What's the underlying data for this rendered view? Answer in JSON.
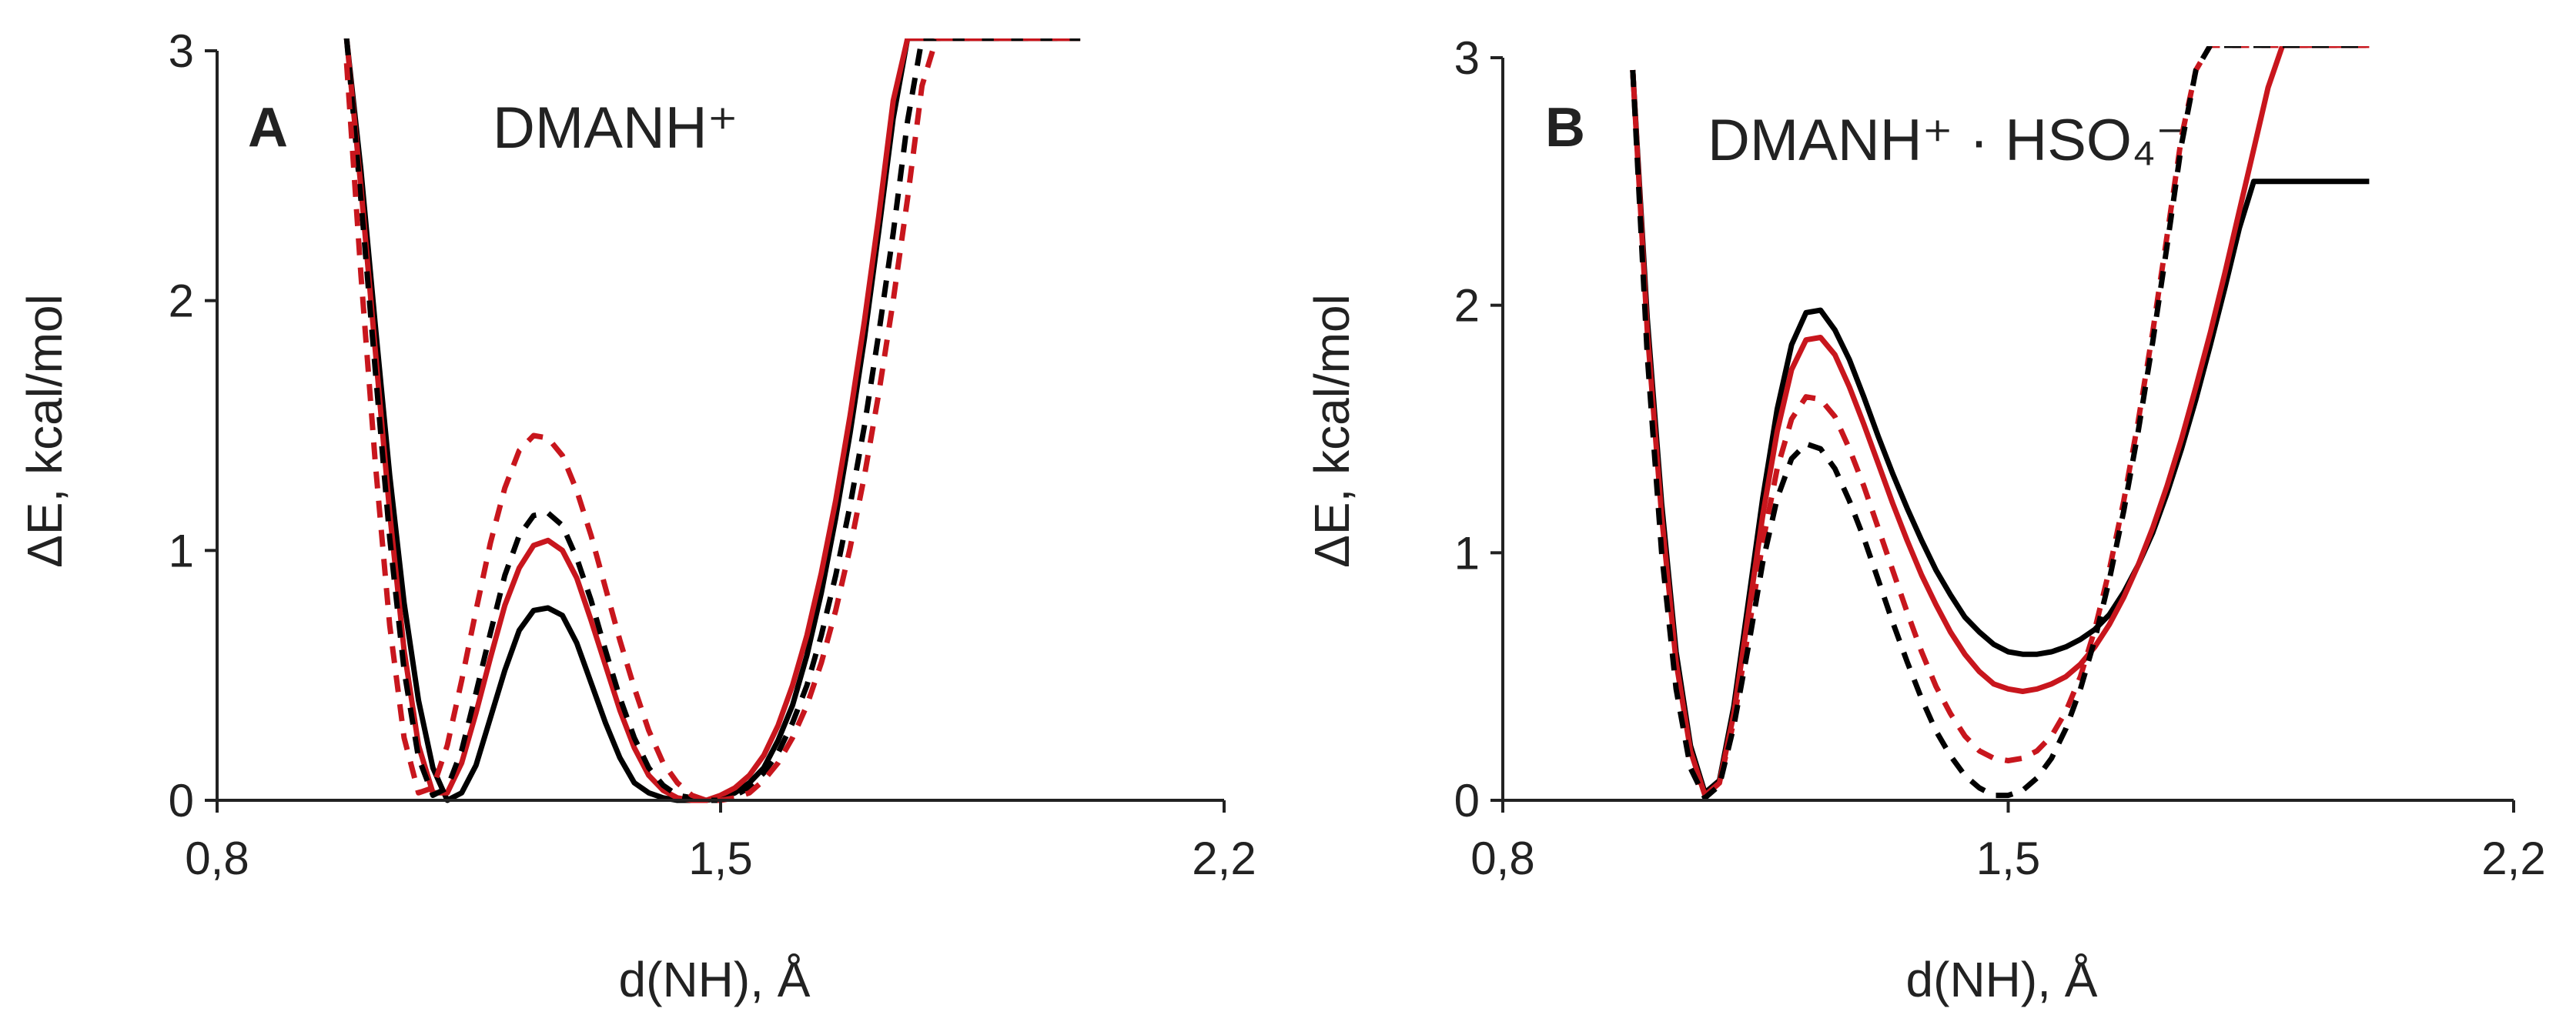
{
  "chart_data": [
    {
      "type": "line",
      "panel_letter": "A",
      "title": "DMANH⁺",
      "xlabel": "d(NH), Å",
      "ylabel": "ΔE, kcal/mol",
      "xlim": [
        0.8,
        2.2
      ],
      "ylim": [
        0,
        3
      ],
      "x_ticks": [
        "0,8",
        "1,5",
        "2,2"
      ],
      "y_ticks": [
        "0",
        "1",
        "2",
        "3"
      ],
      "grid": false,
      "series": [
        {
          "name": "black solid",
          "color": "#000000",
          "dash": "solid",
          "x": [
            0.98,
            1.0,
            1.02,
            1.04,
            1.06,
            1.08,
            1.1,
            1.12,
            1.14,
            1.16,
            1.18,
            1.2,
            1.22,
            1.24,
            1.26,
            1.28,
            1.3,
            1.32,
            1.34,
            1.36,
            1.38,
            1.4,
            1.42,
            1.44,
            1.46,
            1.48,
            1.5,
            1.52,
            1.54,
            1.56,
            1.58,
            1.6,
            1.62,
            1.64,
            1.66,
            1.68,
            1.7,
            1.72,
            1.74,
            1.76,
            1.78,
            1.8,
            1.82,
            1.84,
            1.86,
            1.88,
            1.9,
            1.92,
            1.94,
            1.96,
            1.98,
            2.0
          ],
          "y": [
            3.05,
            2.52,
            1.9,
            1.3,
            0.79,
            0.4,
            0.13,
            0.0,
            0.03,
            0.14,
            0.33,
            0.52,
            0.68,
            0.76,
            0.77,
            0.74,
            0.63,
            0.47,
            0.31,
            0.17,
            0.07,
            0.03,
            0.01,
            0.0,
            0.0,
            0.0,
            0.01,
            0.03,
            0.07,
            0.13,
            0.24,
            0.38,
            0.58,
            0.83,
            1.13,
            1.47,
            1.85,
            2.28,
            2.73,
            3.05,
            3.05,
            3.05,
            3.05,
            3.05,
            3.05,
            3.05,
            3.05,
            3.05,
            3.05,
            3.05,
            3.05,
            3.05
          ]
        },
        {
          "name": "red solid",
          "color": "#c8161d",
          "dash": "solid",
          "x": [
            0.98,
            1.0,
            1.02,
            1.04,
            1.06,
            1.08,
            1.1,
            1.12,
            1.14,
            1.16,
            1.18,
            1.2,
            1.22,
            1.24,
            1.26,
            1.28,
            1.3,
            1.32,
            1.34,
            1.36,
            1.38,
            1.4,
            1.42,
            1.44,
            1.46,
            1.48,
            1.5,
            1.52,
            1.54,
            1.56,
            1.58,
            1.6,
            1.62,
            1.64,
            1.66,
            1.68,
            1.7,
            1.72,
            1.74,
            1.76,
            1.78,
            1.8,
            1.82,
            1.84,
            1.86,
            1.88,
            1.9,
            1.92,
            1.94,
            1.96,
            1.98,
            2.0
          ],
          "y": [
            3.05,
            2.45,
            1.8,
            1.15,
            0.6,
            0.22,
            0.03,
            0.03,
            0.15,
            0.35,
            0.57,
            0.78,
            0.93,
            1.02,
            1.04,
            1.0,
            0.89,
            0.72,
            0.54,
            0.36,
            0.21,
            0.1,
            0.04,
            0.01,
            0.0,
            0.0,
            0.02,
            0.05,
            0.1,
            0.18,
            0.3,
            0.46,
            0.66,
            0.91,
            1.2,
            1.54,
            1.92,
            2.34,
            2.8,
            3.05,
            3.05,
            3.05,
            3.05,
            3.05,
            3.05,
            3.05,
            3.05,
            3.05,
            3.05,
            3.05,
            3.05,
            3.05
          ]
        },
        {
          "name": "black dashed",
          "color": "#000000",
          "dash": "dashed",
          "x": [
            0.98,
            1.0,
            1.02,
            1.04,
            1.06,
            1.08,
            1.1,
            1.12,
            1.14,
            1.16,
            1.18,
            1.2,
            1.22,
            1.24,
            1.26,
            1.28,
            1.3,
            1.32,
            1.34,
            1.36,
            1.38,
            1.4,
            1.42,
            1.44,
            1.46,
            1.48,
            1.5,
            1.52,
            1.54,
            1.56,
            1.58,
            1.6,
            1.62,
            1.64,
            1.66,
            1.68,
            1.7,
            1.72,
            1.74,
            1.76,
            1.78,
            1.8,
            1.82,
            1.84,
            1.86,
            1.88,
            1.9,
            1.92,
            1.94,
            1.96,
            1.98,
            2.0
          ],
          "y": [
            3.05,
            2.4,
            1.72,
            1.05,
            0.52,
            0.17,
            0.02,
            0.05,
            0.2,
            0.43,
            0.67,
            0.9,
            1.06,
            1.14,
            1.15,
            1.1,
            0.97,
            0.8,
            0.6,
            0.41,
            0.25,
            0.13,
            0.06,
            0.02,
            0.01,
            0.0,
            0.0,
            0.02,
            0.05,
            0.11,
            0.19,
            0.31,
            0.46,
            0.66,
            0.9,
            1.18,
            1.5,
            1.87,
            2.27,
            2.72,
            3.05,
            3.05,
            3.05,
            3.05,
            3.05,
            3.05,
            3.05,
            3.05,
            3.05,
            3.05,
            3.05,
            3.05
          ]
        },
        {
          "name": "red dashed",
          "color": "#c8161d",
          "dash": "dashed",
          "x": [
            0.98,
            1.0,
            1.02,
            1.04,
            1.06,
            1.08,
            1.1,
            1.12,
            1.14,
            1.16,
            1.18,
            1.2,
            1.22,
            1.24,
            1.26,
            1.28,
            1.3,
            1.32,
            1.34,
            1.36,
            1.38,
            1.4,
            1.42,
            1.44,
            1.46,
            1.48,
            1.5,
            1.52,
            1.54,
            1.56,
            1.58,
            1.6,
            1.62,
            1.64,
            1.66,
            1.68,
            1.7,
            1.72,
            1.74,
            1.76,
            1.78,
            1.8,
            1.82,
            1.84,
            1.86,
            1.88,
            1.9,
            1.92,
            1.94,
            1.96,
            1.98,
            2.0
          ],
          "y": [
            2.95,
            2.1,
            1.35,
            0.7,
            0.25,
            0.03,
            0.05,
            0.22,
            0.48,
            0.76,
            1.03,
            1.25,
            1.4,
            1.46,
            1.45,
            1.38,
            1.24,
            1.06,
            0.85,
            0.64,
            0.45,
            0.28,
            0.15,
            0.07,
            0.02,
            0.0,
            0.0,
            0.01,
            0.03,
            0.08,
            0.15,
            0.25,
            0.38,
            0.55,
            0.76,
            1.01,
            1.3,
            1.63,
            2.0,
            2.41,
            2.86,
            3.05,
            3.05,
            3.05,
            3.05,
            3.05,
            3.05,
            3.05,
            3.05,
            3.05,
            3.05,
            3.05
          ]
        }
      ]
    },
    {
      "type": "line",
      "panel_letter": "B",
      "title": "DMANH⁺ · HSO₄⁻",
      "xlabel": "d(NH), Å",
      "ylabel": "ΔE, kcal/mol",
      "xlim": [
        0.8,
        2.2
      ],
      "ylim": [
        0,
        3
      ],
      "x_ticks": [
        "0,8",
        "1,5",
        "2,2"
      ],
      "y_ticks": [
        "0",
        "1",
        "2",
        "3"
      ],
      "grid": false,
      "series": [
        {
          "name": "black solid",
          "color": "#000000",
          "dash": "solid",
          "x": [
            0.98,
            1.0,
            1.02,
            1.04,
            1.06,
            1.08,
            1.1,
            1.12,
            1.14,
            1.16,
            1.18,
            1.2,
            1.22,
            1.24,
            1.26,
            1.28,
            1.3,
            1.32,
            1.34,
            1.36,
            1.38,
            1.4,
            1.42,
            1.44,
            1.46,
            1.48,
            1.5,
            1.52,
            1.54,
            1.56,
            1.58,
            1.6,
            1.62,
            1.64,
            1.66,
            1.68,
            1.7,
            1.72,
            1.74,
            1.76,
            1.78,
            1.8,
            1.82,
            1.84,
            1.86,
            1.88,
            1.9,
            1.92,
            1.94,
            1.96,
            1.98,
            2.0
          ],
          "y": [
            2.95,
            1.95,
            1.2,
            0.6,
            0.22,
            0.03,
            0.08,
            0.38,
            0.8,
            1.22,
            1.58,
            1.84,
            1.97,
            1.98,
            1.9,
            1.78,
            1.63,
            1.47,
            1.32,
            1.18,
            1.05,
            0.93,
            0.83,
            0.74,
            0.68,
            0.63,
            0.6,
            0.59,
            0.59,
            0.6,
            0.62,
            0.65,
            0.69,
            0.75,
            0.84,
            0.95,
            1.08,
            1.24,
            1.42,
            1.62,
            1.84,
            2.07,
            2.31,
            2.5,
            2.5,
            2.5,
            2.5,
            2.5,
            2.5,
            2.5,
            2.5,
            2.5
          ]
        },
        {
          "name": "red solid",
          "color": "#c8161d",
          "dash": "solid",
          "x": [
            0.98,
            1.0,
            1.02,
            1.04,
            1.06,
            1.08,
            1.1,
            1.12,
            1.14,
            1.16,
            1.18,
            1.2,
            1.22,
            1.24,
            1.26,
            1.28,
            1.3,
            1.32,
            1.34,
            1.36,
            1.38,
            1.4,
            1.42,
            1.44,
            1.46,
            1.48,
            1.5,
            1.52,
            1.54,
            1.56,
            1.58,
            1.6,
            1.62,
            1.64,
            1.66,
            1.68,
            1.7,
            1.72,
            1.74,
            1.76,
            1.78,
            1.8,
            1.82,
            1.84,
            1.86,
            1.88,
            1.9,
            1.92,
            1.94,
            1.96,
            1.98,
            2.0
          ],
          "y": [
            2.95,
            1.9,
            1.15,
            0.56,
            0.2,
            0.02,
            0.07,
            0.35,
            0.75,
            1.15,
            1.49,
            1.74,
            1.86,
            1.87,
            1.8,
            1.67,
            1.52,
            1.36,
            1.2,
            1.05,
            0.91,
            0.79,
            0.68,
            0.59,
            0.52,
            0.47,
            0.45,
            0.44,
            0.45,
            0.47,
            0.5,
            0.55,
            0.62,
            0.71,
            0.82,
            0.95,
            1.1,
            1.27,
            1.46,
            1.67,
            1.89,
            2.13,
            2.38,
            2.63,
            2.88,
            3.05,
            3.05,
            3.05,
            3.05,
            3.05,
            3.05,
            3.05
          ]
        },
        {
          "name": "red dashed",
          "color": "#c8161d",
          "dash": "dashed",
          "x": [
            0.98,
            1.0,
            1.02,
            1.04,
            1.06,
            1.08,
            1.1,
            1.12,
            1.14,
            1.16,
            1.18,
            1.2,
            1.22,
            1.24,
            1.26,
            1.28,
            1.3,
            1.32,
            1.34,
            1.36,
            1.38,
            1.4,
            1.42,
            1.44,
            1.46,
            1.48,
            1.5,
            1.52,
            1.54,
            1.56,
            1.58,
            1.6,
            1.62,
            1.64,
            1.66,
            1.68,
            1.7,
            1.72,
            1.74,
            1.76,
            1.78,
            1.8,
            1.82,
            1.84,
            1.86,
            1.88,
            1.9,
            1.92,
            1.94,
            1.96,
            1.98,
            2.0
          ],
          "y": [
            2.95,
            1.85,
            1.08,
            0.5,
            0.16,
            0.02,
            0.07,
            0.32,
            0.68,
            1.04,
            1.34,
            1.54,
            1.63,
            1.62,
            1.55,
            1.42,
            1.27,
            1.1,
            0.93,
            0.76,
            0.6,
            0.46,
            0.35,
            0.26,
            0.2,
            0.17,
            0.16,
            0.17,
            0.2,
            0.26,
            0.36,
            0.5,
            0.69,
            0.93,
            1.21,
            1.53,
            1.89,
            2.28,
            2.68,
            2.95,
            3.05,
            3.05,
            3.05,
            3.05,
            3.05,
            3.05,
            3.05,
            3.05,
            3.05,
            3.05,
            3.05,
            3.05
          ]
        },
        {
          "name": "black dashed",
          "color": "#000000",
          "dash": "dashed",
          "x": [
            0.98,
            1.0,
            1.02,
            1.04,
            1.06,
            1.08,
            1.1,
            1.12,
            1.14,
            1.16,
            1.18,
            1.2,
            1.22,
            1.24,
            1.26,
            1.28,
            1.3,
            1.32,
            1.34,
            1.36,
            1.38,
            1.4,
            1.42,
            1.44,
            1.46,
            1.48,
            1.5,
            1.52,
            1.54,
            1.56,
            1.58,
            1.6,
            1.62,
            1.64,
            1.66,
            1.68,
            1.7,
            1.72,
            1.74,
            1.76,
            1.78,
            1.8,
            1.82,
            1.84,
            1.86,
            1.88,
            1.9,
            1.92,
            1.94,
            1.96,
            1.98,
            2.0
          ],
          "y": [
            2.95,
            1.8,
            1.0,
            0.45,
            0.13,
            0.01,
            0.06,
            0.3,
            0.62,
            0.96,
            1.22,
            1.38,
            1.44,
            1.42,
            1.34,
            1.21,
            1.06,
            0.89,
            0.72,
            0.56,
            0.41,
            0.28,
            0.18,
            0.1,
            0.05,
            0.02,
            0.02,
            0.04,
            0.09,
            0.17,
            0.29,
            0.45,
            0.65,
            0.89,
            1.17,
            1.49,
            1.85,
            2.24,
            2.65,
            2.95,
            3.05,
            3.05,
            3.05,
            3.05,
            3.05,
            3.05,
            3.05,
            3.05,
            3.05,
            3.05,
            3.05,
            3.05
          ]
        }
      ]
    }
  ]
}
